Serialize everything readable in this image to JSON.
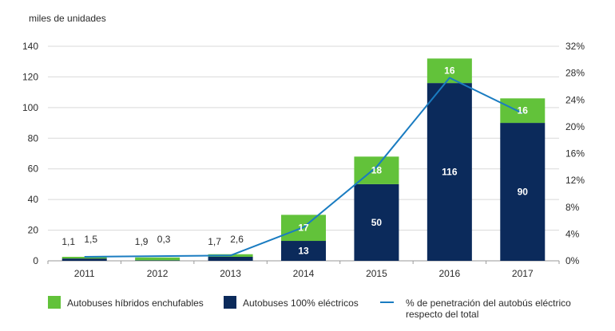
{
  "chart_data": {
    "type": "bar",
    "stacked": true,
    "unit_label": "miles de unidades",
    "categories": [
      "2011",
      "2012",
      "2013",
      "2014",
      "2015",
      "2016",
      "2017"
    ],
    "ylim": [
      0,
      140
    ],
    "y_ticks": [
      "0",
      "20",
      "40",
      "60",
      "80",
      "100",
      "120",
      "140"
    ],
    "y2lim": [
      0,
      32
    ],
    "y2_ticks": [
      "0%",
      "4%",
      "8%",
      "12%",
      "16%",
      "20%",
      "24%",
      "28%",
      "32%"
    ],
    "series": [
      {
        "name": "Autobuses 100% eléctricos",
        "color": "#0b2a5b",
        "values": [
          1.5,
          0.3,
          2.6,
          13,
          50,
          116,
          90
        ],
        "labels": [
          "1,5",
          "0,3",
          "2,6",
          "13",
          "50",
          "116",
          "90"
        ]
      },
      {
        "name": "Autobuses híbridos enchufables",
        "color": "#62c23a",
        "values": [
          1.1,
          1.9,
          1.7,
          17,
          18,
          16,
          16
        ],
        "labels": [
          "1,1",
          "1,9",
          "1,7",
          "17",
          "18",
          "16",
          "16"
        ]
      }
    ],
    "line": {
      "name": "% de penetración del autobús eléctrico respecto del total",
      "name_lines": [
        "% de penetración del autobús eléctrico",
        "respecto del total"
      ],
      "color": "#1a7cc1",
      "axis": "right",
      "values": [
        0.6,
        0.7,
        0.8,
        5.0,
        14.0,
        27.3,
        22.0
      ]
    }
  }
}
